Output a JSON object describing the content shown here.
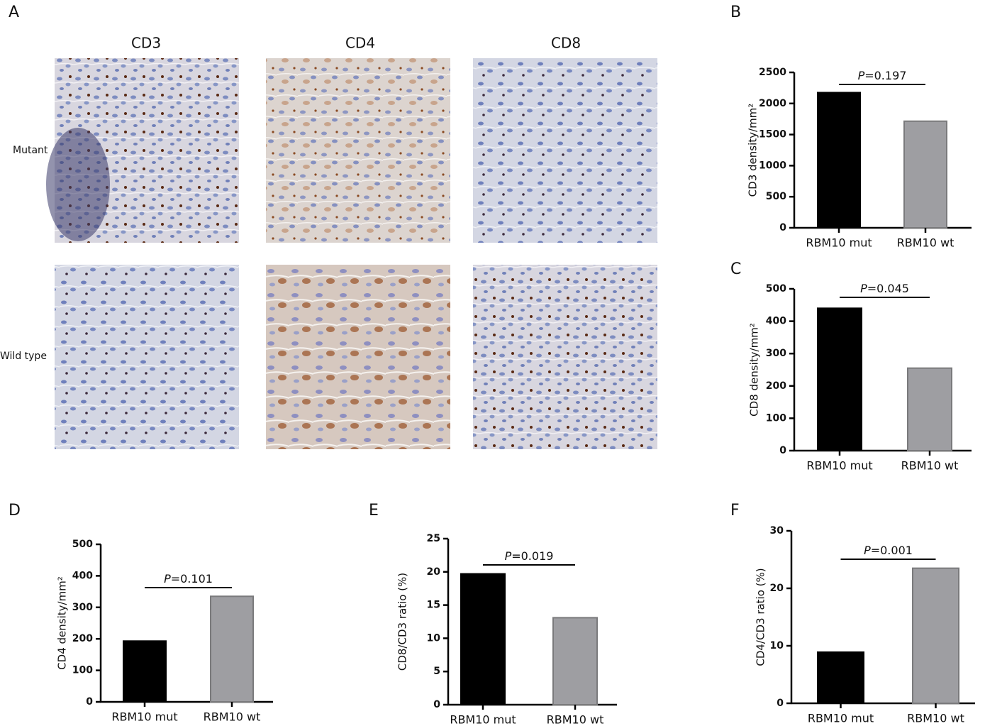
{
  "panel_a": {
    "letter": "A",
    "columns": [
      "CD3",
      "CD4",
      "CD8"
    ],
    "rows": [
      "Mutant",
      "Wild type"
    ]
  },
  "chart_data": [
    {
      "type": "bar",
      "panel": "B",
      "y_label": "CD3 density/mm²",
      "annotation": "P=0.197",
      "categories": [
        "RBM10 mut",
        "RBM10 wt"
      ],
      "values": [
        2175,
        1715
      ],
      "colors": [
        "#000000",
        "#9e9ea2"
      ],
      "ylim": [
        0,
        2500
      ],
      "yticks": [
        0,
        500,
        1000,
        1500,
        2000,
        2500
      ]
    },
    {
      "type": "bar",
      "panel": "C",
      "y_label": "CD8 density/mm²",
      "annotation": "P=0.045",
      "categories": [
        "RBM10 mut",
        "RBM10 wt"
      ],
      "values": [
        440,
        255
      ],
      "colors": [
        "#000000",
        "#9e9ea2"
      ],
      "ylim": [
        0,
        500
      ],
      "yticks": [
        0,
        100,
        200,
        300,
        400,
        500
      ]
    },
    {
      "type": "bar",
      "panel": "D",
      "y_label": "CD4 density/mm²",
      "annotation": "P=0.101",
      "categories": [
        "RBM10 mut",
        "RBM10 wt"
      ],
      "values": [
        193,
        335
      ],
      "colors": [
        "#000000",
        "#9e9ea2"
      ],
      "ylim": [
        0,
        500
      ],
      "yticks": [
        0,
        100,
        200,
        300,
        400,
        500
      ]
    },
    {
      "type": "bar",
      "panel": "E",
      "y_label": "CD8/CD3 ratio (%)",
      "annotation": "P=0.019",
      "categories": [
        "RBM10 mut",
        "RBM10 wt"
      ],
      "values": [
        19.7,
        13.1
      ],
      "colors": [
        "#000000",
        "#9e9ea2"
      ],
      "ylim": [
        0,
        25
      ],
      "yticks": [
        0,
        5,
        10,
        15,
        20,
        25
      ]
    },
    {
      "type": "bar",
      "panel": "F",
      "y_label": "CD4/CD3 ratio (%)",
      "annotation": "P=0.001",
      "categories": [
        "RBM10 mut",
        "RBM10 wt"
      ],
      "values": [
        8.9,
        23.5
      ],
      "colors": [
        "#000000",
        "#9e9ea2"
      ],
      "ylim": [
        0,
        30
      ],
      "yticks": [
        0,
        10,
        20,
        30
      ]
    }
  ]
}
